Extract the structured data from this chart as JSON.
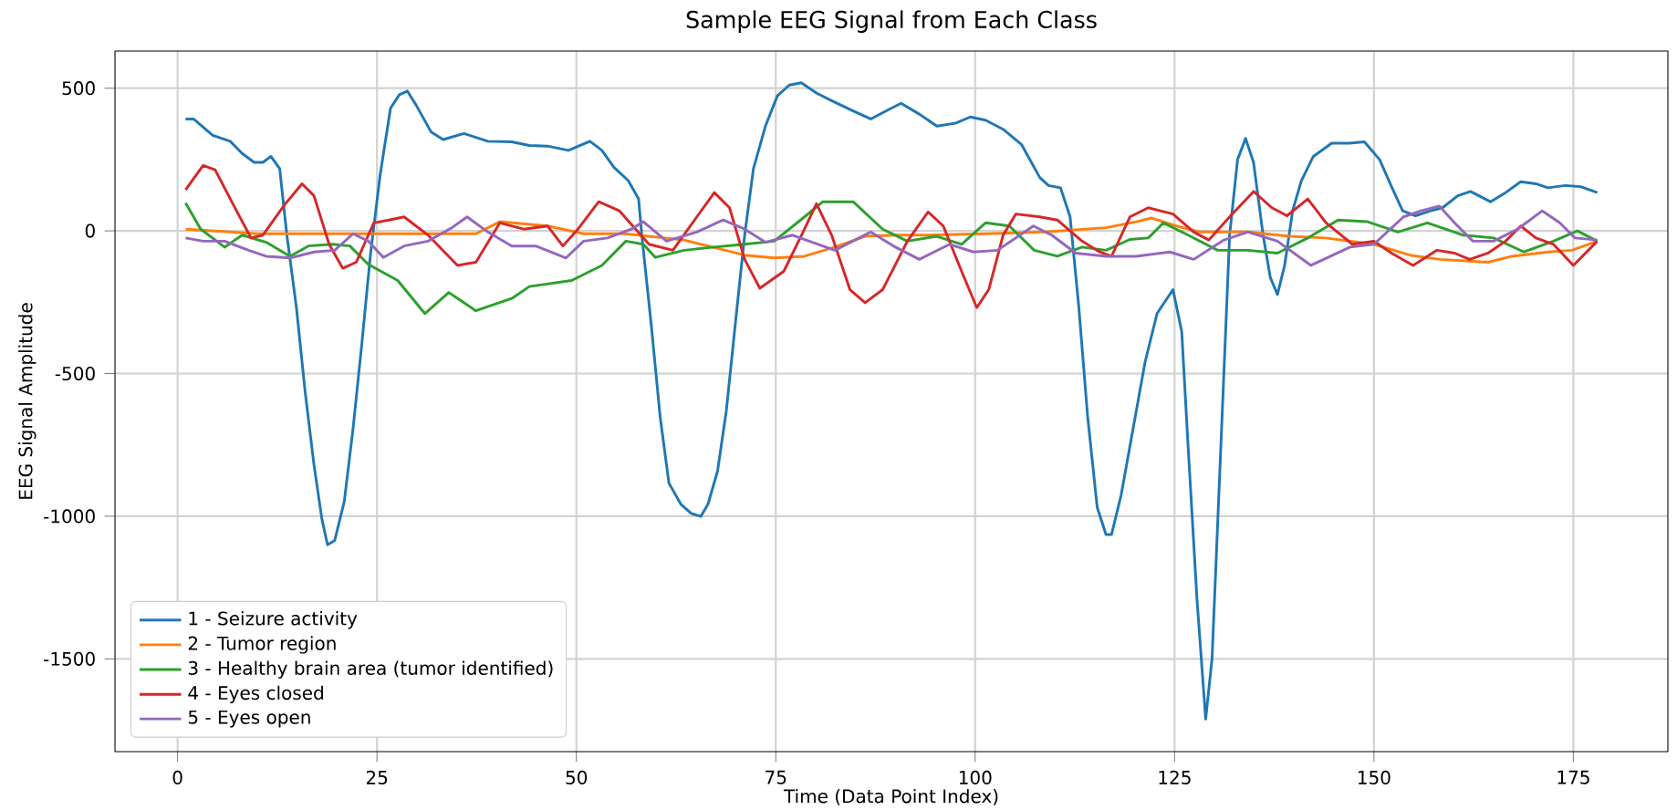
{
  "chart_data": {
    "type": "line",
    "title": "Sample EEG Signal from Each Class",
    "xlabel": "Time (Data Point Index)",
    "ylabel": "EEG Signal Amplitude",
    "xlim": [
      -7.85,
      186.85
    ],
    "ylim": [
      -1825,
      630
    ],
    "xticks": [
      0,
      25,
      50,
      75,
      100,
      125,
      150,
      175
    ],
    "yticks": [
      -1500,
      -1000,
      -500,
      0,
      500
    ],
    "grid": true,
    "legend": "bottom left",
    "line_style": "solid",
    "marker": "none",
    "series": [
      {
        "name": "1 - Seizure activity",
        "color": "#1f77b4",
        "x": [
          1,
          2,
          4.4,
          6.6,
          8.1,
          9.6,
          10.7,
          11.7,
          12.8,
          13.7,
          14.9,
          16,
          17.1,
          18.1,
          18.8,
          19.7,
          20.9,
          22,
          23.1,
          24.2,
          25.4,
          26.7,
          27.8,
          28.8,
          29.9,
          31.8,
          33.3,
          35.9,
          38.9,
          41.9,
          44.1,
          46.4,
          49,
          51.7,
          53.2,
          54.7,
          56.5,
          57.8,
          58.2,
          59.4,
          60.5,
          61.6,
          63.1,
          64.4,
          65.6,
          66.5,
          67.7,
          68.8,
          69.9,
          71.1,
          72.2,
          73.7,
          75.2,
          76.7,
          78.2,
          80.1,
          82,
          84.7,
          86.9,
          88.8,
          90.7,
          93,
          95.2,
          97.5,
          99.4,
          101.3,
          103.5,
          105.8,
          108.1,
          109.2,
          110.7,
          111.9,
          113,
          114.1,
          115.3,
          116.4,
          117.1,
          118.3,
          119.8,
          121.3,
          122.8,
          124.8,
          125.9,
          126.7,
          127.8,
          128.9,
          129.7,
          130.8,
          131.9,
          132.9,
          133.9,
          134.9,
          136.1,
          137,
          137.9,
          138.8,
          139.8,
          140.9,
          142.4,
          144.7,
          146.9,
          148.8,
          150.7,
          152.2,
          153.6,
          155.2,
          157.1,
          158.6,
          160.5,
          162.1,
          164.6,
          166.5,
          168.4,
          170.3,
          171.8,
          174,
          175.9,
          178
        ],
        "values": [
          392,
          392,
          335,
          314,
          271,
          240,
          240,
          261,
          218,
          -15,
          -269,
          -566,
          -820,
          -1011,
          -1100,
          -1085,
          -948,
          -693,
          -396,
          -78,
          197,
          430,
          477,
          490,
          441,
          346,
          320,
          341,
          314,
          312,
          299,
          297,
          282,
          314,
          282,
          223,
          176,
          112,
          -15,
          -333,
          -651,
          -884,
          -958,
          -990,
          -1001,
          -958,
          -842,
          -630,
          -333,
          -15,
          218,
          367,
          473,
          511,
          519,
          483,
          456,
          420,
          392,
          420,
          447,
          409,
          367,
          377,
          399,
          388,
          356,
          303,
          187,
          159,
          151,
          49,
          -269,
          -651,
          -969,
          -1064,
          -1064,
          -926,
          -693,
          -460,
          -290,
          -206,
          -354,
          -757,
          -1287,
          -1711,
          -1499,
          -757,
          -15,
          250,
          324,
          240,
          -15,
          -163,
          -223,
          -121,
          70,
          176,
          261,
          307,
          307,
          312,
          250,
          155,
          70,
          53,
          70,
          81,
          123,
          138,
          102,
          134,
          172,
          165,
          151,
          159,
          155,
          134
        ]
      },
      {
        "name": "2 - Tumor region",
        "color": "#ff7f0e",
        "x": [
          1,
          10,
          20,
          30,
          37.4,
          40.4,
          46.4,
          50.9,
          56.1,
          63.5,
          71.1,
          74.8,
          78.6,
          82.4,
          86.2,
          90,
          93.7,
          101.3,
          108.8,
          116.4,
          120.2,
          122.1,
          125.2,
          128.2,
          134.2,
          139.4,
          143.9,
          150,
          154.5,
          158.3,
          164.3,
          167.3,
          171.8,
          174.8,
          178
        ],
        "values": [
          6,
          -10,
          -10,
          -10,
          -10,
          32,
          17,
          -10,
          -10,
          -32,
          -85,
          -95,
          -89,
          -57,
          -19,
          -15,
          -15,
          -10,
          -4,
          11,
          32,
          45,
          17,
          -4,
          -4,
          -19,
          -25,
          -47,
          -85,
          -100,
          -110,
          -89,
          -74,
          -68,
          -36
        ]
      },
      {
        "name": "3 - Healthy brain area (tumor identified)",
        "color": "#2ca02c",
        "x": [
          1,
          2.9,
          5.9,
          8.1,
          11.1,
          14.1,
          16.4,
          19.4,
          21.6,
          23.9,
          27.6,
          31,
          34,
          37.4,
          41.9,
          44.1,
          49.4,
          53.2,
          56.2,
          58.4,
          59.9,
          63.5,
          67.3,
          71.1,
          74.8,
          78.6,
          80.9,
          84.7,
          88.4,
          91.5,
          95.2,
          98.3,
          101.3,
          104.3,
          107.4,
          110.3,
          113.4,
          116.4,
          119.4,
          121.7,
          123.6,
          126.7,
          130.4,
          134.2,
          137.9,
          141.7,
          145.5,
          149.2,
          153,
          156.7,
          161.2,
          165,
          168.8,
          172.5,
          175.5,
          178
        ],
        "values": [
          98,
          6,
          -57,
          -15,
          -40,
          -89,
          -53,
          -47,
          -53,
          -117,
          -174,
          -290,
          -216,
          -280,
          -237,
          -195,
          -174,
          -121,
          -36,
          -47,
          -93,
          -68,
          -57,
          -47,
          -36,
          49,
          102,
          102,
          6,
          -36,
          -19,
          -47,
          28,
          17,
          -68,
          -89,
          -57,
          -68,
          -30,
          -25,
          28,
          -15,
          -68,
          -68,
          -78,
          -25,
          38,
          32,
          -4,
          28,
          -15,
          -25,
          -74,
          -36,
          0,
          -36
        ]
      },
      {
        "name": "4 - Eyes closed",
        "color": "#d62728",
        "x": [
          1,
          3.2,
          4.7,
          7,
          9.2,
          10.7,
          13.4,
          15.6,
          17.1,
          19,
          20.7,
          22.4,
          24.6,
          26.5,
          28.4,
          31.4,
          35.1,
          37.4,
          40.4,
          43.4,
          46.4,
          48.3,
          50.2,
          52.8,
          55.4,
          59.1,
          62.1,
          65.1,
          67.3,
          69.2,
          71.1,
          73,
          76,
          78.6,
          80.1,
          82,
          84.3,
          86.2,
          88.4,
          91.5,
          94.1,
          96,
          98.3,
          100.2,
          101.7,
          103.5,
          105.1,
          108.1,
          110.3,
          113.4,
          115.6,
          117.1,
          119.4,
          121.7,
          124.8,
          127.4,
          129.3,
          131.9,
          134.9,
          137.2,
          139.1,
          141.7,
          144,
          147.3,
          150,
          152.2,
          154.9,
          157.9,
          160.1,
          162,
          164.3,
          166.5,
          168.4,
          170.3,
          172.5,
          175,
          178
        ],
        "values": [
          144,
          229,
          214,
          91,
          -25,
          -15,
          91,
          165,
          123,
          -47,
          -131,
          -110,
          28,
          38,
          49,
          -15,
          -121,
          -110,
          28,
          6,
          17,
          -53,
          6,
          102,
          70,
          -47,
          -68,
          49,
          134,
          81,
          -100,
          -201,
          -142,
          6,
          95,
          -15,
          -206,
          -252,
          -206,
          -36,
          66,
          17,
          -142,
          -269,
          -206,
          -15,
          59,
          49,
          38,
          -36,
          -74,
          -89,
          49,
          81,
          59,
          -4,
          -32,
          49,
          138,
          81,
          53,
          112,
          28,
          -47,
          -36,
          -78,
          -121,
          -68,
          -78,
          -100,
          -78,
          -36,
          17,
          -25,
          -47,
          -121,
          -36
        ]
      },
      {
        "name": "5 - Eyes open",
        "color": "#9467bd",
        "x": [
          1,
          3.2,
          5.9,
          8.9,
          11.1,
          14.1,
          17.1,
          19.7,
          22,
          23.9,
          25.8,
          28.4,
          31.4,
          34.4,
          36.3,
          38.9,
          41.9,
          44.9,
          48.7,
          50.9,
          53.9,
          56.9,
          58.4,
          61.3,
          65.1,
          68.4,
          71.1,
          73.7,
          77.1,
          82.4,
          86.9,
          90,
          93,
          96.8,
          99.8,
          102.8,
          107.3,
          109.6,
          112.6,
          116.4,
          120.2,
          124.4,
          127.4,
          131.2,
          134.2,
          137.9,
          142.1,
          147,
          150,
          153.7,
          155.9,
          158.2,
          160.1,
          162.4,
          165,
          168,
          171.1,
          173.3,
          175.2,
          178
        ],
        "values": [
          -25,
          -36,
          -36,
          -68,
          -89,
          -95,
          -74,
          -68,
          -10,
          -36,
          -93,
          -53,
          -36,
          11,
          49,
          -4,
          -53,
          -53,
          -95,
          -36,
          -25,
          6,
          32,
          -36,
          -4,
          38,
          6,
          -40,
          -15,
          -68,
          -4,
          -57,
          -100,
          -47,
          -74,
          -68,
          17,
          -15,
          -78,
          -89,
          -89,
          -74,
          -100,
          -32,
          -4,
          -36,
          -121,
          -57,
          -47,
          49,
          70,
          87,
          28,
          -36,
          -36,
          6,
          70,
          28,
          -25,
          -32
        ]
      }
    ]
  }
}
